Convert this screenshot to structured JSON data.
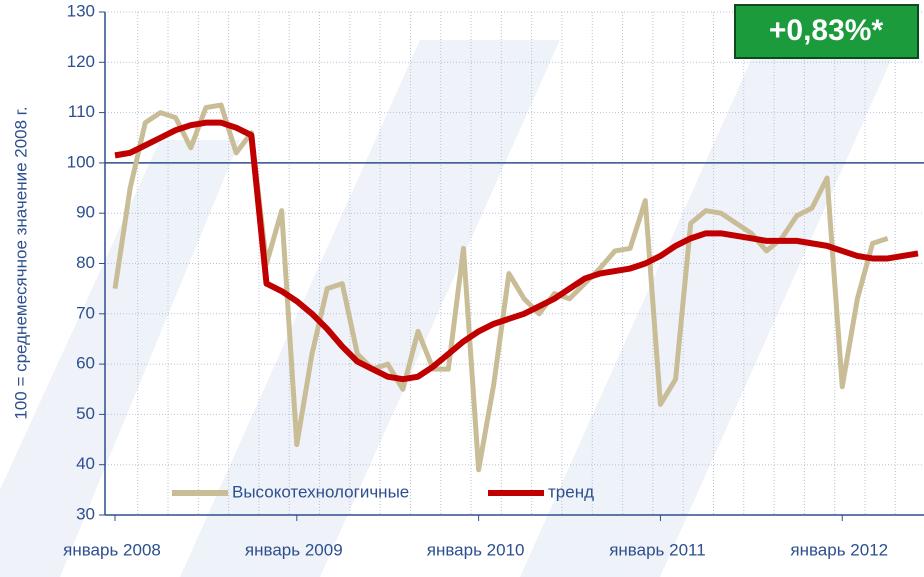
{
  "chart_data": {
    "type": "line",
    "y_label": "100 = среднемесячное значение 2008 г.",
    "badge": "+0,83%*",
    "categories": [
      "январь 2008",
      null,
      null,
      null,
      null,
      null,
      null,
      null,
      null,
      null,
      null,
      null,
      "январь 2009",
      null,
      null,
      null,
      null,
      null,
      null,
      null,
      null,
      null,
      null,
      null,
      "январь 2010",
      null,
      null,
      null,
      null,
      null,
      null,
      null,
      null,
      null,
      null,
      null,
      "январь 2011",
      null,
      null,
      null,
      null,
      null,
      null,
      null,
      null,
      null,
      null,
      null,
      "январь 2012",
      null,
      null,
      null,
      null,
      null
    ],
    "series": [
      {
        "name": "Высокотехнологичные",
        "color": "#c9bd97",
        "values": [
          75,
          95,
          108,
          110,
          109,
          103,
          111,
          111.5,
          102,
          106,
          80,
          90.5,
          44,
          62,
          75,
          76,
          62,
          59,
          60,
          55,
          66.5,
          59,
          59,
          83,
          39,
          56,
          78,
          73,
          70,
          74,
          73,
          76,
          79,
          82.5,
          83,
          92.5,
          52,
          57,
          88,
          90.5,
          90,
          88,
          86,
          82.5,
          85,
          89.5,
          91,
          97,
          55.5,
          73,
          84,
          85,
          null,
          null
        ]
      },
      {
        "name": "тренд",
        "color": "#c00000",
        "values": [
          101.5,
          102,
          103.5,
          105,
          106.5,
          107.5,
          108,
          108,
          107,
          105.5,
          76,
          74.5,
          72.5,
          70,
          67,
          63.5,
          60.5,
          59,
          57.5,
          57,
          57.5,
          59.5,
          62,
          64.5,
          66.5,
          68,
          69,
          70,
          71.5,
          73,
          75,
          77,
          78,
          78.5,
          79,
          80,
          81.5,
          83.5,
          85,
          86,
          86,
          85.5,
          85,
          84.5,
          84.5,
          84.5,
          84,
          83.5,
          82.5,
          81.5,
          81,
          81,
          81.5,
          82
        ]
      }
    ],
    "ylim": [
      30,
      130
    ],
    "yticks": [
      30,
      40,
      50,
      60,
      70,
      80,
      90,
      100,
      110,
      120,
      130
    ],
    "reference_line": 100,
    "grid": true,
    "legend": "bottom-left"
  }
}
